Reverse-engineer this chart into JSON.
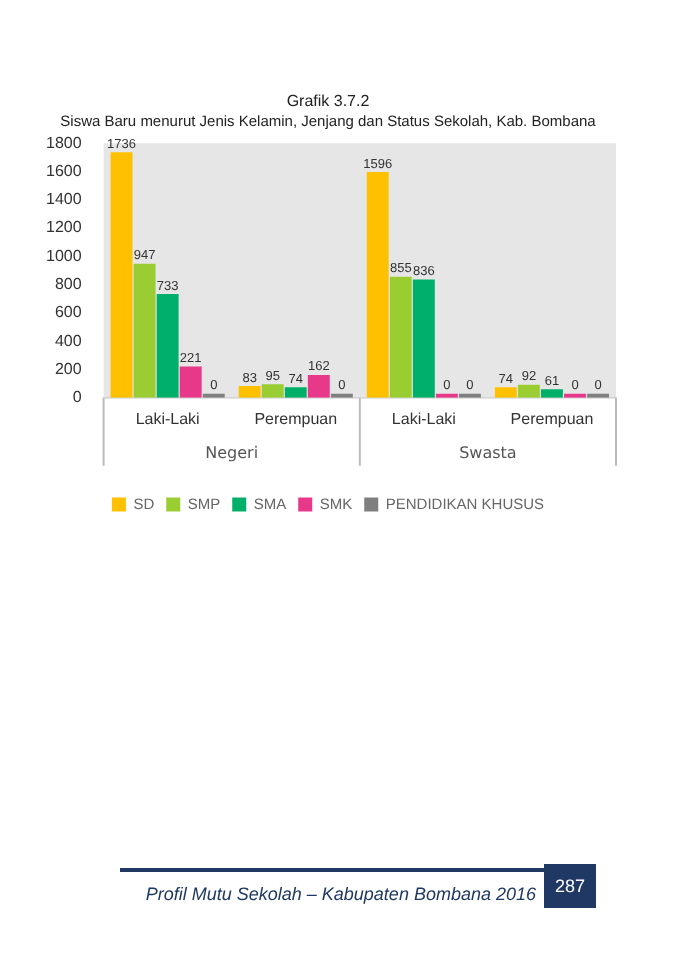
{
  "chart_data": {
    "type": "bar",
    "title": "Grafik 3.7.2",
    "subtitle": "Siswa Baru menurut Jenis Kelamin, Jenjang dan Status Sekolah, Kab. Bombana",
    "categories": [
      "Laki-Laki",
      "Perempuan",
      "Laki-Laki",
      "Perempuan"
    ],
    "series": [
      {
        "name": "SD",
        "color": "#ffc000",
        "values": [
          1736,
          83,
          1596,
          74
        ]
      },
      {
        "name": "SMP",
        "color": "#9acd32",
        "values": [
          947,
          95,
          855,
          92
        ]
      },
      {
        "name": "SMA",
        "color": "#00b06a",
        "values": [
          733,
          74,
          836,
          61
        ]
      },
      {
        "name": "SMK",
        "color": "#e8388a",
        "values": [
          221,
          162,
          0,
          0
        ]
      },
      {
        "name": "PENDIDIKAN KHUSUS",
        "color": "#7f7f7f",
        "values": [
          0,
          0,
          0,
          0
        ]
      }
    ],
    "ylim": [
      0,
      1800
    ],
    "yticks": [
      0,
      200,
      400,
      600,
      800,
      1000,
      1200,
      1400,
      1600,
      1800
    ],
    "grid": false,
    "legend": "bottom",
    "data_labels": true,
    "annotations": [
      "Negeri",
      "Swasta",
      "Profil Mutu Sekolah – Kabupaten Bombana 2016",
      "287"
    ]
  }
}
